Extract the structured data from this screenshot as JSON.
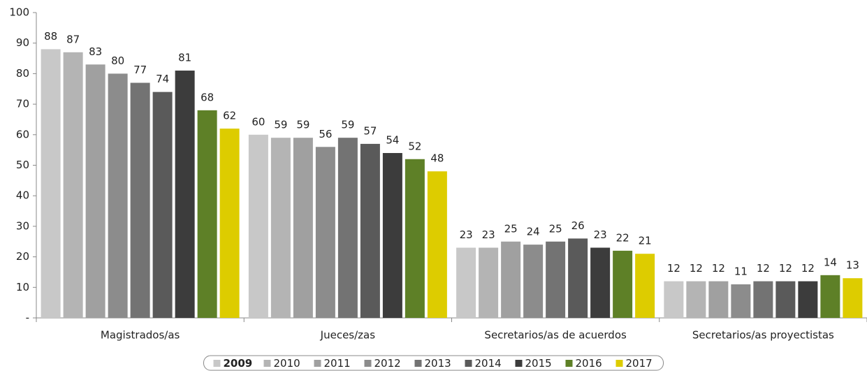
{
  "chart_data": {
    "type": "bar",
    "categories": [
      "Magistrados/as",
      "Jueces/zas",
      "Secretarios/as de acuerdos",
      "Secretarios/as proyectistas"
    ],
    "series": [
      {
        "name": "2009",
        "color": "#c8c8c8",
        "values": [
          88,
          60,
          23,
          12
        ]
      },
      {
        "name": "2010",
        "color": "#b4b4b4",
        "values": [
          87,
          59,
          23,
          12
        ]
      },
      {
        "name": "2011",
        "color": "#a0a0a0",
        "values": [
          83,
          59,
          25,
          12
        ]
      },
      {
        "name": "2012",
        "color": "#8c8c8c",
        "values": [
          80,
          56,
          24,
          11
        ]
      },
      {
        "name": "2013",
        "color": "#737373",
        "values": [
          77,
          59,
          25,
          12
        ]
      },
      {
        "name": "2014",
        "color": "#5a5a5a",
        "values": [
          74,
          57,
          26,
          12
        ]
      },
      {
        "name": "2015",
        "color": "#3c3c3c",
        "values": [
          81,
          54,
          23,
          12
        ]
      },
      {
        "name": "2016",
        "color": "#5e8027",
        "values": [
          68,
          52,
          22,
          14
        ]
      },
      {
        "name": "2017",
        "color": "#ddcc00",
        "values": [
          62,
          48,
          21,
          13
        ]
      }
    ],
    "ylim": [
      0,
      100
    ],
    "yticks": [
      {
        "value": 0,
        "label": "-"
      },
      10,
      20,
      30,
      40,
      50,
      60,
      70,
      80,
      90,
      100
    ],
    "legend": "bottom"
  }
}
